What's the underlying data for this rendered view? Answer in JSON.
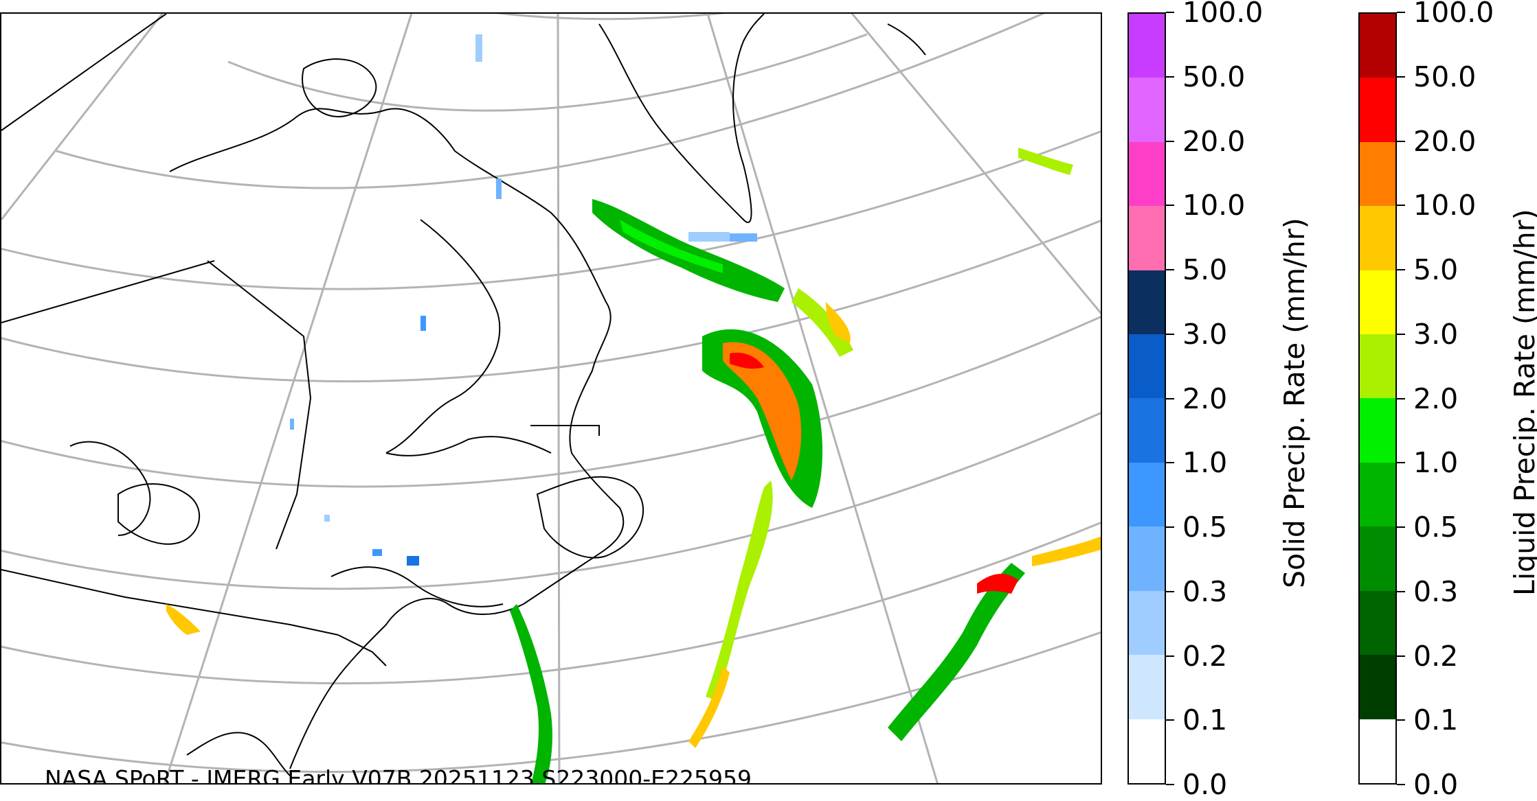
{
  "credit": "NASA SPoRT - IMERG Early V07B 20251123 S223000-E225959",
  "colorbars": {
    "solid": {
      "title": "Solid Precip. Rate (mm/hr)",
      "ticks": [
        "0.0",
        "0.1",
        "0.2",
        "0.3",
        "0.5",
        "1.0",
        "2.0",
        "3.0",
        "5.0",
        "10.0",
        "20.0",
        "50.0",
        "100.0"
      ],
      "colors": [
        "#ffffff",
        "#cfe6ff",
        "#9fcdff",
        "#6fb3ff",
        "#3d97ff",
        "#1a73e0",
        "#0a5cc8",
        "#0b2f5f",
        "#ff6eb0",
        "#ff3ec8",
        "#e066ff",
        "#c83cff",
        "#9b0fd6"
      ]
    },
    "liquid": {
      "title": "Liquid Precip. Rate (mm/hr)",
      "ticks": [
        "0.0",
        "0.1",
        "0.2",
        "0.3",
        "0.5",
        "1.0",
        "2.0",
        "3.0",
        "5.0",
        "10.0",
        "20.0",
        "50.0",
        "100.0"
      ],
      "colors": [
        "#ffffff",
        "#003d00",
        "#006400",
        "#008c00",
        "#00b400",
        "#00f000",
        "#aaf000",
        "#ffff00",
        "#ffc800",
        "#ff7d00",
        "#ff0000",
        "#b40000",
        "#4b0000"
      ]
    }
  }
}
